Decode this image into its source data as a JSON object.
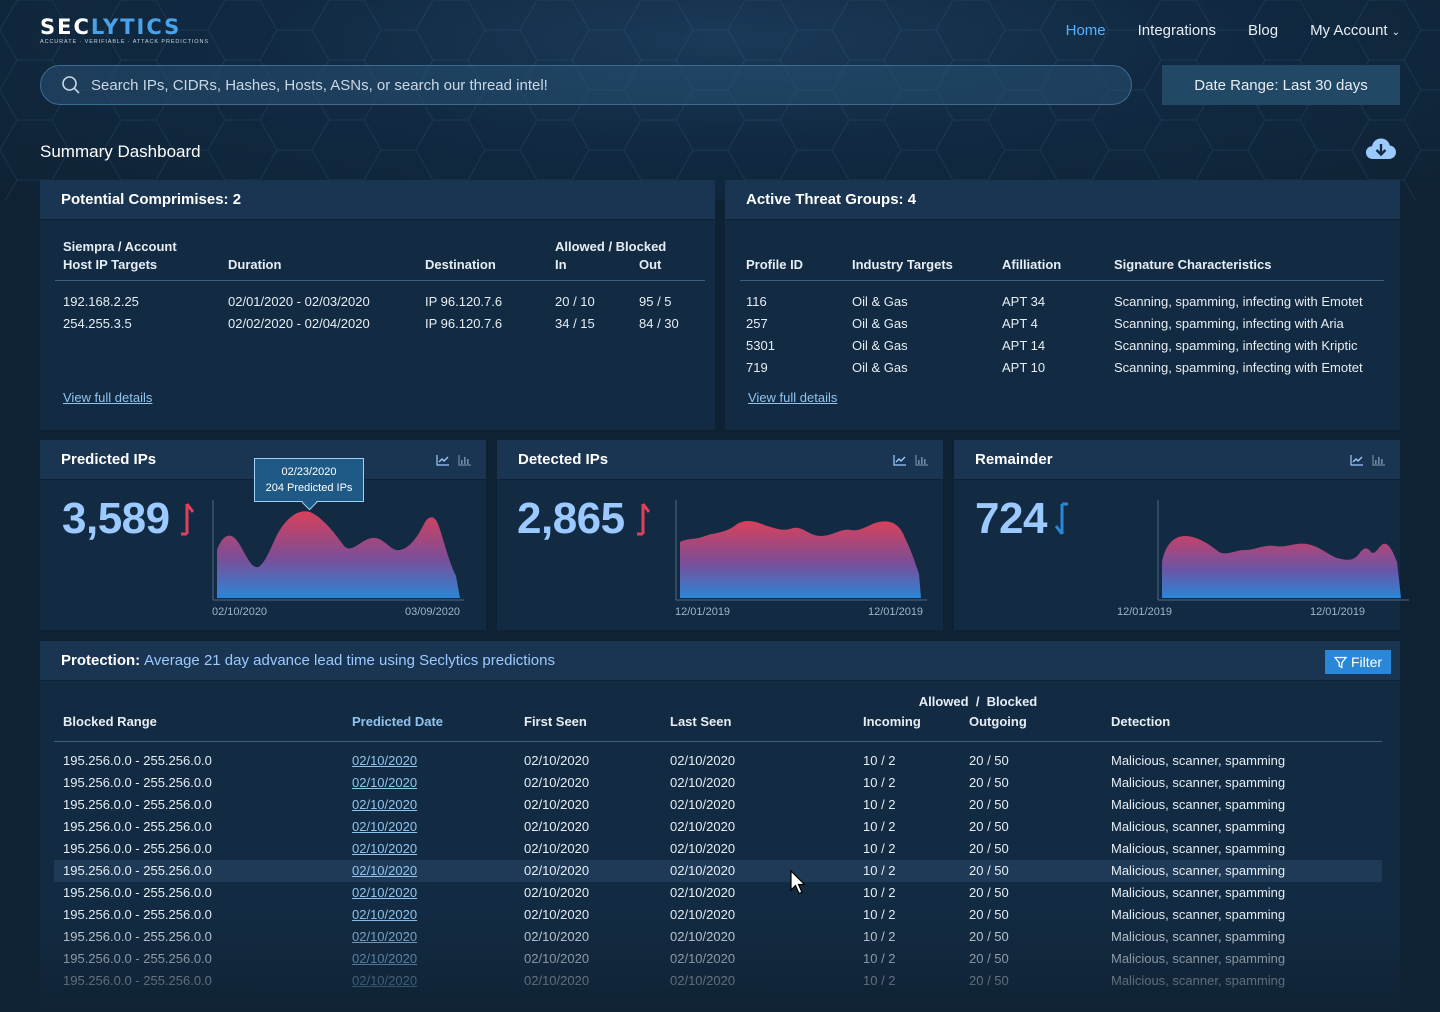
{
  "brand": {
    "logo_text_a": "SEC",
    "logo_text_b": "LYTICS",
    "tagline": "ACCURATE · VERIFIABLE · ATTACK PREDICTIONS"
  },
  "nav": {
    "home": "Home",
    "integrations": "Integrations",
    "blog": "Blog",
    "account": "My Account"
  },
  "search": {
    "placeholder": "Search IPs, CIDRs, Hashes, Hosts, ASNs, or search our thread intel!"
  },
  "date_range": "Date Range: Last 30 days",
  "page_title": "Summary Dashboard",
  "compromises": {
    "title": "Potential Comprimises: 2",
    "headers": {
      "host_line1": "Siempra / Account",
      "host_line2": "Host IP Targets",
      "duration": "Duration",
      "destination": "Destination",
      "ab": "Allowed / Blocked",
      "in": "In",
      "out": "Out"
    },
    "rows": [
      {
        "host": "192.168.2.25",
        "duration": "02/01/2020 - 02/03/2020",
        "destination": "IP 96.120.7.6",
        "in": "20 / 10",
        "out": "95 / 5"
      },
      {
        "host": "254.255.3.5",
        "duration": "02/02/2020 - 02/04/2020",
        "destination": "IP 96.120.7.6",
        "in": "34 / 15",
        "out": "84 / 30"
      }
    ],
    "link": "View full details"
  },
  "threats": {
    "title": "Active Threat Groups: 4",
    "headers": {
      "profile": "Profile ID",
      "industry": "Industry Targets",
      "affiliation": "Afilliation",
      "signature": "Signature Characteristics"
    },
    "rows": [
      {
        "profile": "116",
        "industry": "Oil & Gas",
        "affiliation": "APT 34",
        "signature": "Scanning, spamming, infecting with Emotet"
      },
      {
        "profile": "257",
        "industry": "Oil & Gas",
        "affiliation": "APT 4",
        "signature": "Scanning, spamming, infecting with Aria"
      },
      {
        "profile": "5301",
        "industry": "Oil & Gas",
        "affiliation": "APT 14",
        "signature": "Scanning, spamming, infecting with Kriptic"
      },
      {
        "profile": "719",
        "industry": "Oil & Gas",
        "affiliation": "APT 10",
        "signature": "Scanning, spamming, infecting with Emotet"
      }
    ],
    "link": "View full details"
  },
  "cards": {
    "predicted": {
      "title": "Predicted IPs",
      "value": "3,589",
      "trend": "up",
      "x_start": "02/10/2020",
      "x_end": "03/09/2020",
      "tooltip_date": "02/23/2020",
      "tooltip_value": "204 Predicted IPs"
    },
    "detected": {
      "title": "Detected IPs",
      "value": "2,865",
      "trend": "up",
      "x_start": "12/01/2019",
      "x_end": "12/01/2019"
    },
    "remainder": {
      "title": "Remainder",
      "value": "724",
      "trend": "down",
      "x_start": "12/01/2019",
      "x_end": "12/01/2019"
    }
  },
  "colors": {
    "accent": "#58b2ff",
    "up": "#e0405a",
    "down": "#2a86d6",
    "area_top": "#d9405a",
    "area_bottom": "#2a86d6"
  },
  "protection": {
    "title_bold": "Protection:",
    "title_sub": "Average 21 day advance lead time using Seclytics predictions",
    "filter": "Filter",
    "headers": {
      "blocked": "Blocked Range",
      "predicted": "Predicted Date",
      "first": "First Seen",
      "last": "Last Seen",
      "ab_allowed": "Allowed",
      "ab_sep": "/",
      "ab_blocked": "Blocked",
      "incoming": "Incoming",
      "outgoing": "Outgoing",
      "detection": "Detection"
    },
    "rows": [
      {
        "range": "195.256.0.0 - 255.256.0.0",
        "predicted": "02/10/2020",
        "first": "02/10/2020",
        "last": "02/10/2020",
        "incoming": "10 / 2",
        "outgoing": "20 / 50",
        "detection": "Malicious, scanner, spamming"
      },
      {
        "range": "195.256.0.0 - 255.256.0.0",
        "predicted": "02/10/2020",
        "first": "02/10/2020",
        "last": "02/10/2020",
        "incoming": "10 / 2",
        "outgoing": "20 / 50",
        "detection": "Malicious, scanner, spamming"
      },
      {
        "range": "195.256.0.0 - 255.256.0.0",
        "predicted": "02/10/2020",
        "first": "02/10/2020",
        "last": "02/10/2020",
        "incoming": "10 / 2",
        "outgoing": "20 / 50",
        "detection": "Malicious, scanner, spamming"
      },
      {
        "range": "195.256.0.0 - 255.256.0.0",
        "predicted": "02/10/2020",
        "first": "02/10/2020",
        "last": "02/10/2020",
        "incoming": "10 / 2",
        "outgoing": "20 / 50",
        "detection": "Malicious, scanner, spamming"
      },
      {
        "range": "195.256.0.0 - 255.256.0.0",
        "predicted": "02/10/2020",
        "first": "02/10/2020",
        "last": "02/10/2020",
        "incoming": "10 / 2",
        "outgoing": "20 / 50",
        "detection": "Malicious, scanner, spamming"
      },
      {
        "range": "195.256.0.0 - 255.256.0.0",
        "predicted": "02/10/2020",
        "first": "02/10/2020",
        "last": "02/10/2020",
        "incoming": "10 / 2",
        "outgoing": "20 / 50",
        "detection": "Malicious, scanner, spamming"
      },
      {
        "range": "195.256.0.0 - 255.256.0.0",
        "predicted": "02/10/2020",
        "first": "02/10/2020",
        "last": "02/10/2020",
        "incoming": "10 / 2",
        "outgoing": "20 / 50",
        "detection": "Malicious, scanner, spamming"
      },
      {
        "range": "195.256.0.0 - 255.256.0.0",
        "predicted": "02/10/2020",
        "first": "02/10/2020",
        "last": "02/10/2020",
        "incoming": "10 / 2",
        "outgoing": "20 / 50",
        "detection": "Malicious, scanner, spamming"
      },
      {
        "range": "195.256.0.0 - 255.256.0.0",
        "predicted": "02/10/2020",
        "first": "02/10/2020",
        "last": "02/10/2020",
        "incoming": "10 / 2",
        "outgoing": "20 / 50",
        "detection": "Malicious, scanner, spamming"
      },
      {
        "range": "195.256.0.0 - 255.256.0.0",
        "predicted": "02/10/2020",
        "first": "02/10/2020",
        "last": "02/10/2020",
        "incoming": "10 / 2",
        "outgoing": "20 / 50",
        "detection": "Malicious, scanner, spamming"
      },
      {
        "range": "195.256.0.0 - 255.256.0.0",
        "predicted": "02/10/2020",
        "first": "02/10/2020",
        "last": "02/10/2020",
        "incoming": "10 / 2",
        "outgoing": "20 / 50",
        "detection": "Malicious, scanner, spamming"
      }
    ]
  }
}
